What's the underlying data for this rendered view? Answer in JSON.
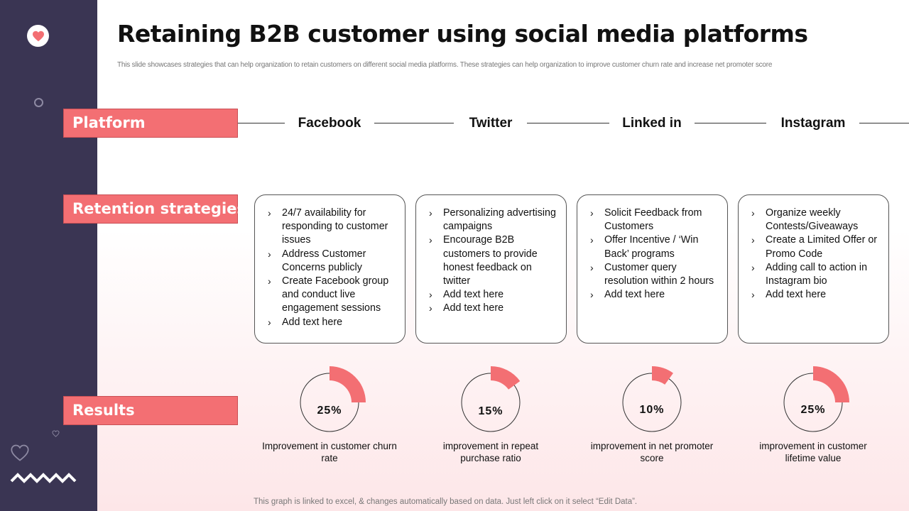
{
  "title": "Retaining B2B customer using social media platforms",
  "subtitle": "This slide showcases strategies that can help organization to retain customers on different social media platforms. These strategies can help organization to improve customer churn rate and increase net promoter score",
  "row_labels": {
    "platform": "Platform",
    "retention": "Retention strategies",
    "results": "Results"
  },
  "platforms": [
    {
      "name": "Facebook",
      "strategies": [
        "24/7 availability for responding to customer issues",
        "Address Customer Concerns publicly",
        "Create Facebook group and conduct live engagement sessions",
        "Add text here"
      ],
      "result": {
        "value": 25,
        "label": "25%",
        "caption": "Improvement in customer churn rate"
      }
    },
    {
      "name": "Twitter",
      "strategies": [
        "Personalizing advertising campaigns",
        "Encourage B2B customers to provide honest feedback on twitter",
        "Add text here",
        "Add text here"
      ],
      "result": {
        "value": 15,
        "label": "15%",
        "caption": "improvement in repeat purchase ratio"
      }
    },
    {
      "name": "Linked in",
      "strategies": [
        "Solicit Feedback from Customers",
        "Offer Incentive / ‘Win Back’ programs",
        "Customer query resolution within 2 hours",
        "Add text here"
      ],
      "result": {
        "value": 10,
        "label": "10%",
        "caption": "improvement in net promoter score"
      }
    },
    {
      "name": "Instagram",
      "strategies": [
        "Organize weekly Contests/Giveaways",
        "Create a Limited Offer or Promo Code",
        "Adding call to action in Instagram bio",
        "Add text here"
      ],
      "result": {
        "value": 25,
        "label": "25%",
        "caption": "improvement in customer lifetime value"
      }
    }
  ],
  "footer_note": "This graph is linked to excel, & changes automatically based on data. Just left click on it select “Edit Data”.",
  "colors": {
    "accent": "#f36f73",
    "sidebar": "#3a3553",
    "ring": "#333333"
  },
  "icons": {
    "badge": "heart-icon",
    "bullet": "chevron-right-icon"
  }
}
